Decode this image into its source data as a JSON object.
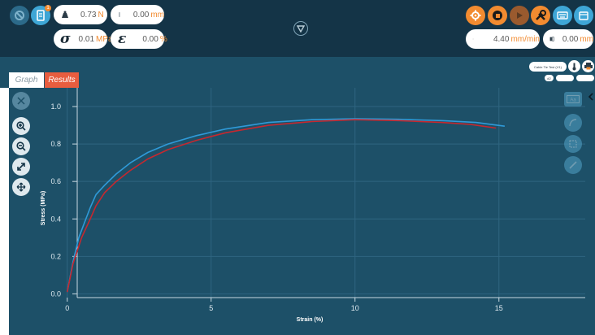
{
  "header": {
    "force": {
      "value": "0.73",
      "unit": "N"
    },
    "position": {
      "value": "0.00",
      "unit": "mm"
    },
    "stress": {
      "symbol": "σ",
      "value": "0.01",
      "unit": "MPa"
    },
    "strain": {
      "symbol": "ε",
      "value": "0.00",
      "unit": "%"
    },
    "speed": {
      "value": "4.40",
      "unit": "mm/min"
    },
    "extension": {
      "value": "0.00",
      "unit": "mm"
    },
    "notification_badge": "1",
    "colors": {
      "orange": "#f28b30",
      "blue": "#3ea6d6",
      "dark": "#143447"
    }
  },
  "tabs": [
    {
      "label": "Graph",
      "active": false
    },
    {
      "label": "Results",
      "active": true
    }
  ],
  "test_selector": {
    "label": "Cable Tie Test (V1)",
    "badge": "#2"
  },
  "chart_data": {
    "type": "line",
    "xlabel": "Strain (%)",
    "ylabel": "Stress (MPa)",
    "xlim": [
      -0.5,
      18
    ],
    "ylim": [
      -0.02,
      1.1
    ],
    "xticks": [
      0,
      5,
      10,
      15
    ],
    "yticks": [
      0.0,
      0.2,
      0.4,
      0.6,
      0.8,
      1.0
    ],
    "xtick_labels": [
      "0",
      "5",
      "10",
      "15"
    ],
    "ytick_labels": [
      "0.0",
      "0.2",
      "0.4",
      "0.6",
      "0.8",
      "1.0"
    ],
    "series": [
      {
        "color": "#2f9ad8",
        "x": [
          0.0,
          0.2,
          0.4,
          0.6,
          0.8,
          1.0,
          1.3,
          1.7,
          2.2,
          2.8,
          3.5,
          4.5,
          5.5,
          7.0,
          8.5,
          10.0,
          11.5,
          13.0,
          14.2,
          15.2
        ],
        "y": [
          0.01,
          0.17,
          0.3,
          0.38,
          0.46,
          0.53,
          0.58,
          0.64,
          0.7,
          0.755,
          0.8,
          0.845,
          0.88,
          0.915,
          0.93,
          0.935,
          0.932,
          0.925,
          0.915,
          0.895
        ]
      },
      {
        "color": "#c6282f",
        "x": [
          0.0,
          0.2,
          0.5,
          0.8,
          1.0,
          1.3,
          1.7,
          2.2,
          2.8,
          3.5,
          4.5,
          5.5,
          7.0,
          8.5,
          10.0,
          11.5,
          13.0,
          14.0,
          14.9
        ],
        "y": [
          0.01,
          0.16,
          0.3,
          0.4,
          0.47,
          0.54,
          0.6,
          0.66,
          0.72,
          0.77,
          0.82,
          0.86,
          0.9,
          0.92,
          0.93,
          0.925,
          0.915,
          0.905,
          0.885
        ]
      }
    ]
  }
}
